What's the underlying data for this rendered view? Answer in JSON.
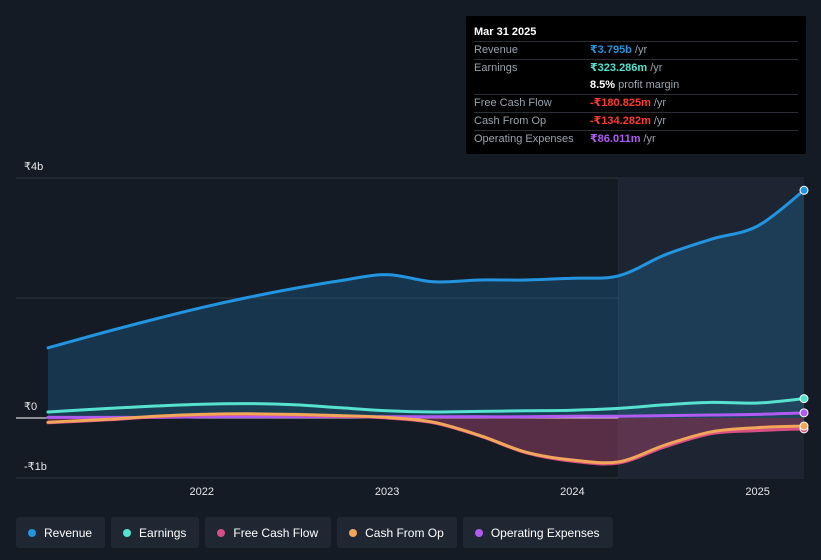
{
  "tooltip": {
    "date": "Mar 31 2025",
    "rows": [
      {
        "label": "Revenue",
        "value": "₹3.795b",
        "unit": "/yr",
        "color": "#2394df"
      },
      {
        "label": "Earnings",
        "value": "₹323.286m",
        "unit": "/yr",
        "color": "#56e2cf"
      },
      {
        "label": "",
        "value": "8.5%",
        "unit": "profit margin",
        "color": "#ffffff"
      },
      {
        "label": "Free Cash Flow",
        "value": "-₹180.825m",
        "unit": "/yr",
        "color": "#ff3b30"
      },
      {
        "label": "Cash From Op",
        "value": "-₹134.282m",
        "unit": "/yr",
        "color": "#ff3b30"
      },
      {
        "label": "Operating Expenses",
        "value": "₹86.011m",
        "unit": "/yr",
        "color": "#b05cf2"
      }
    ]
  },
  "legend": [
    {
      "label": "Revenue",
      "color": "#2394df"
    },
    {
      "label": "Earnings",
      "color": "#56e2cf"
    },
    {
      "label": "Free Cash Flow",
      "color": "#d84f84"
    },
    {
      "label": "Cash From Op",
      "color": "#f2a65a"
    },
    {
      "label": "Operating Expenses",
      "color": "#b05cf2"
    }
  ],
  "chart_data": {
    "type": "area",
    "y_tick_labels": [
      "₹4b",
      "₹0",
      "-₹1b"
    ],
    "y_ticks": [
      4,
      0,
      -1
    ],
    "x_tick_labels": [
      "2022",
      "2023",
      "2024",
      "2025"
    ],
    "x_ticks": [
      2022,
      2023,
      2024,
      2025
    ],
    "xlim": [
      2021.17,
      2025.25
    ],
    "ylim": [
      -1.0,
      4.0
    ],
    "units": "₹ billions",
    "highlight_start": 2024.25,
    "series": [
      {
        "name": "Revenue",
        "color": "#2394df",
        "x": [
          2021.17,
          2021.5,
          2021.75,
          2022.0,
          2022.25,
          2022.5,
          2022.75,
          2023.0,
          2023.25,
          2023.5,
          2023.75,
          2024.0,
          2024.25,
          2024.5,
          2024.75,
          2025.0,
          2025.25
        ],
        "y": [
          1.17,
          1.45,
          1.65,
          1.84,
          2.01,
          2.16,
          2.29,
          2.39,
          2.27,
          2.3,
          2.3,
          2.33,
          2.37,
          2.72,
          2.98,
          3.2,
          3.795
        ]
      },
      {
        "name": "Earnings",
        "color": "#56e2cf",
        "x": [
          2021.17,
          2021.5,
          2021.75,
          2022.0,
          2022.25,
          2022.5,
          2022.75,
          2023.0,
          2023.25,
          2023.5,
          2023.75,
          2024.0,
          2024.25,
          2024.5,
          2024.75,
          2025.0,
          2025.25
        ],
        "y": [
          0.1,
          0.16,
          0.2,
          0.23,
          0.24,
          0.22,
          0.17,
          0.12,
          0.1,
          0.11,
          0.12,
          0.13,
          0.16,
          0.22,
          0.26,
          0.25,
          0.323
        ]
      },
      {
        "name": "Free Cash Flow",
        "color": "#d84f84",
        "x": [
          2021.17,
          2021.5,
          2021.75,
          2022.0,
          2022.25,
          2022.5,
          2022.75,
          2023.0,
          2023.25,
          2023.5,
          2023.75,
          2024.0,
          2024.25,
          2024.5,
          2024.75,
          2025.0,
          2025.25
        ],
        "y": [
          -0.08,
          -0.03,
          0.02,
          0.05,
          0.06,
          0.05,
          0.03,
          0.0,
          -0.08,
          -0.3,
          -0.58,
          -0.72,
          -0.75,
          -0.48,
          -0.26,
          -0.21,
          -0.181
        ]
      },
      {
        "name": "Cash From Op",
        "color": "#f2a65a",
        "x": [
          2021.17,
          2021.5,
          2021.75,
          2022.0,
          2022.25,
          2022.5,
          2022.75,
          2023.0,
          2023.25,
          2023.5,
          2023.75,
          2024.0,
          2024.25,
          2024.5,
          2024.75,
          2025.0,
          2025.25
        ],
        "y": [
          -0.07,
          -0.02,
          0.03,
          0.06,
          0.07,
          0.06,
          0.04,
          0.01,
          -0.07,
          -0.29,
          -0.57,
          -0.7,
          -0.73,
          -0.45,
          -0.23,
          -0.16,
          -0.134
        ]
      },
      {
        "name": "Operating Expenses",
        "color": "#b05cf2",
        "x": [
          2021.17,
          2021.5,
          2021.75,
          2022.0,
          2022.25,
          2022.5,
          2022.75,
          2023.0,
          2023.25,
          2023.5,
          2023.75,
          2024.0,
          2024.25,
          2024.5,
          2024.75,
          2025.0,
          2025.25
        ],
        "y": [
          0.01,
          0.01,
          0.01,
          0.02,
          0.02,
          0.02,
          0.02,
          0.02,
          0.02,
          0.02,
          0.02,
          0.03,
          0.03,
          0.04,
          0.05,
          0.06,
          0.086
        ]
      }
    ]
  }
}
